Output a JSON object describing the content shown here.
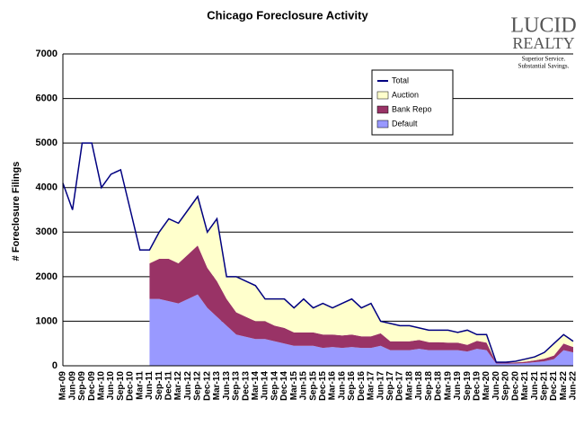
{
  "chart_data": {
    "type": "stacked-area-line",
    "title": "Chicago Foreclosure Activity",
    "y_label": "# Foreclosure Filings",
    "logo": {
      "name": "LUCID",
      "name2": "REALTY",
      "tagline1": "Superior Service.",
      "tagline2": "Substantial Savings."
    },
    "categories": [
      "Mar-09",
      "Jun-09",
      "Sep-09",
      "Dec-09",
      "Mar-10",
      "Jun-10",
      "Sep-10",
      "Dec-10",
      "Mar-11",
      "Jun-11",
      "Sep-11",
      "Dec-11",
      "Mar-12",
      "Jun-12",
      "Sep-12",
      "Dec-12",
      "Mar-13",
      "Jun-13",
      "Sep-13",
      "Dec-13",
      "Mar-14",
      "Jun-14",
      "Sep-14",
      "Dec-14",
      "Mar-15",
      "Jun-15",
      "Sep-15",
      "Dec-15",
      "Mar-16",
      "Jun-16",
      "Sep-16",
      "Dec-16",
      "Mar-17",
      "Jun-17",
      "Sep-17",
      "Dec-17",
      "Mar-18",
      "Jun-18",
      "Sep-18",
      "Dec-18",
      "Mar-19",
      "Jun-19",
      "Sep-19",
      "Dec-19",
      "Mar-20",
      "Jun-20",
      "Sep-20",
      "Dec-20",
      "Mar-21",
      "Jun-21",
      "Sep-21",
      "Dec-21",
      "Mar-22",
      "Jun-22"
    ],
    "series": [
      {
        "name": "Default",
        "color": "#9999ff",
        "kind": "area",
        "values": [
          null,
          null,
          null,
          null,
          null,
          null,
          null,
          null,
          null,
          1500,
          1500,
          1450,
          1400,
          1500,
          1600,
          1300,
          1100,
          900,
          700,
          650,
          600,
          600,
          550,
          500,
          450,
          450,
          450,
          400,
          420,
          400,
          420,
          400,
          400,
          450,
          350,
          350,
          350,
          380,
          350,
          350,
          350,
          350,
          320,
          380,
          350,
          50,
          50,
          50,
          60,
          80,
          100,
          150,
          350,
          300
        ]
      },
      {
        "name": "Bank Repo",
        "color": "#993366",
        "kind": "area",
        "values": [
          null,
          null,
          null,
          null,
          null,
          null,
          null,
          null,
          null,
          800,
          900,
          950,
          900,
          1000,
          1100,
          900,
          800,
          600,
          500,
          450,
          400,
          400,
          350,
          350,
          300,
          300,
          300,
          300,
          280,
          280,
          280,
          260,
          260,
          280,
          200,
          200,
          200,
          200,
          180,
          180,
          170,
          170,
          150,
          180,
          170,
          20,
          20,
          25,
          30,
          40,
          60,
          80,
          150,
          120
        ]
      },
      {
        "name": "Auction",
        "color": "#ffffcc",
        "kind": "area",
        "values": [
          null,
          null,
          null,
          null,
          null,
          null,
          null,
          null,
          null,
          300,
          600,
          900,
          900,
          1000,
          1100,
          800,
          1400,
          500,
          800,
          800,
          800,
          500,
          600,
          650,
          550,
          750,
          550,
          700,
          600,
          720,
          800,
          640,
          740,
          270,
          400,
          350,
          350,
          270,
          270,
          270,
          280,
          230,
          330,
          140,
          180,
          10,
          10,
          25,
          60,
          80,
          140,
          270,
          200,
          130
        ]
      },
      {
        "name": "Total",
        "color": "#000080",
        "kind": "line",
        "values": [
          4100,
          3500,
          5000,
          5000,
          4000,
          4300,
          4400,
          3500,
          2600,
          2600,
          3000,
          3300,
          3200,
          3500,
          3800,
          3000,
          3300,
          2000,
          2000,
          1900,
          1800,
          1500,
          1500,
          1500,
          1300,
          1500,
          1300,
          1400,
          1300,
          1400,
          1500,
          1300,
          1400,
          1000,
          950,
          900,
          900,
          850,
          800,
          800,
          800,
          750,
          800,
          700,
          700,
          80,
          80,
          100,
          150,
          200,
          300,
          500,
          700,
          550
        ]
      }
    ],
    "ylim": [
      0,
      7000
    ],
    "yticks": [
      0,
      1000,
      2000,
      3000,
      4000,
      5000,
      6000,
      7000
    ],
    "grid": true,
    "legend": "top-right"
  }
}
